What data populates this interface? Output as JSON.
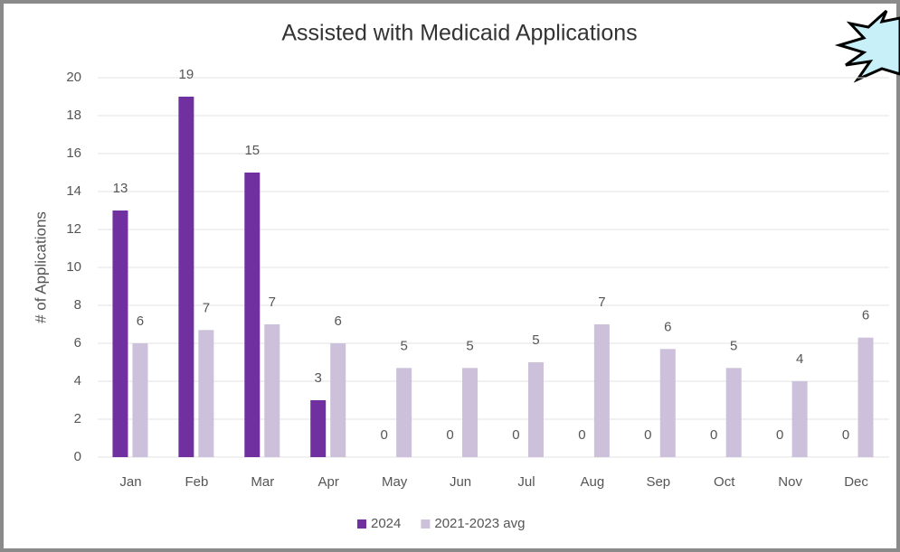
{
  "chart_data": {
    "type": "bar",
    "title": "Assisted with Medicaid Applications",
    "y_label": "# of Applications",
    "categories": [
      "Jan",
      "Feb",
      "Mar",
      "Apr",
      "May",
      "Jun",
      "Jul",
      "Aug",
      "Sep",
      "Oct",
      "Nov",
      "Dec"
    ],
    "series": [
      {
        "name": "2024",
        "color": "#7030a0",
        "values": [
          13,
          19,
          15,
          3,
          0,
          0,
          0,
          0,
          0,
          0,
          0,
          0
        ]
      },
      {
        "name": "2021-2023 avg",
        "color": "#ccc0da",
        "values": [
          6.0,
          6.7,
          7.0,
          6.0,
          4.7,
          4.7,
          5.0,
          7.0,
          5.7,
          4.7,
          4.0,
          6.3
        ],
        "value_labels": [
          "6",
          "7",
          "7",
          "6",
          "5",
          "5",
          "5",
          "7",
          "6",
          "5",
          "4",
          "6"
        ]
      }
    ],
    "ylim": [
      0,
      20
    ],
    "yticks": [
      0,
      2,
      4,
      6,
      8,
      10,
      12,
      14,
      16,
      18,
      20
    ],
    "grid": true,
    "legend": "bottom"
  }
}
